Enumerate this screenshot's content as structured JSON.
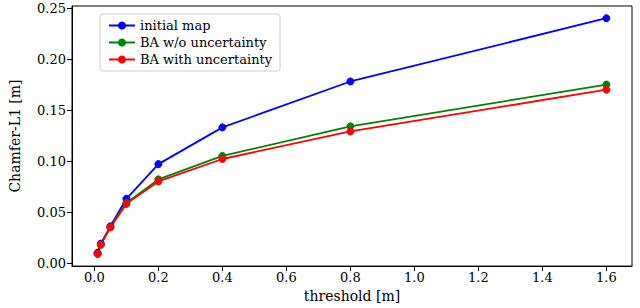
{
  "chart_data": {
    "type": "line",
    "x_label": "threshold [m]",
    "y_label": "Chamfer-L1 [m]",
    "x": [
      0.01,
      0.02,
      0.05,
      0.1,
      0.2,
      0.4,
      0.8,
      1.6
    ],
    "series": [
      {
        "name": "initial map",
        "color": "#0000ff",
        "values": [
          0.01,
          0.019,
          0.036,
          0.063,
          0.097,
          0.133,
          0.178,
          0.24
        ]
      },
      {
        "name": "BA w/o uncertainty",
        "color": "#008000",
        "values": [
          0.009,
          0.018,
          0.035,
          0.059,
          0.082,
          0.105,
          0.134,
          0.175
        ]
      },
      {
        "name": "BA with uncertainty",
        "color": "#ff0000",
        "values": [
          0.009,
          0.018,
          0.035,
          0.058,
          0.08,
          0.102,
          0.129,
          0.17
        ]
      }
    ],
    "xlim": [
      -0.07,
      1.68
    ],
    "ylim": [
      -0.003,
      0.252
    ],
    "xticks": [
      {
        "value": 0,
        "label": "0.0"
      },
      0.2,
      0.4,
      0.6,
      0.8,
      {
        "value": 1,
        "label": "1.0"
      },
      1.2,
      1.4,
      1.6
    ],
    "yticks": [
      {
        "value": 0,
        "label": "0.00"
      },
      0.05,
      {
        "value": 0.1,
        "label": "0.10"
      },
      0.15,
      {
        "value": 0.2,
        "label": "0.20"
      },
      0.25
    ],
    "grid": false,
    "legend": "upper left",
    "marker": "circle",
    "line_style": "solid"
  }
}
